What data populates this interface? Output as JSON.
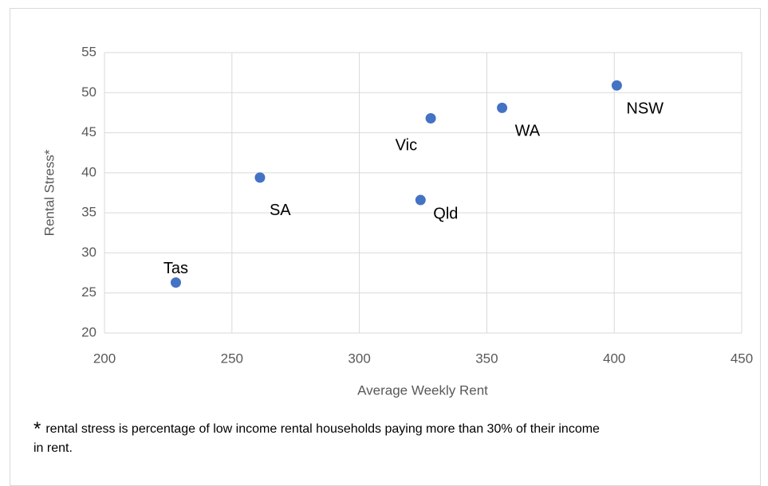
{
  "chart_data": {
    "type": "scatter",
    "xlabel": "Average Weekly Rent",
    "ylabel": "Rental Stress*",
    "x": [
      228,
      261,
      324,
      328,
      356,
      401
    ],
    "values": [
      26.3,
      39.4,
      36.6,
      46.8,
      48.1,
      50.9
    ],
    "labels": [
      "Tas",
      "SA",
      "Qld",
      "Vic",
      "WA",
      "NSW"
    ],
    "color": "#4472c4",
    "xlim": [
      200,
      450
    ],
    "xticks": [
      200,
      250,
      300,
      350,
      400,
      450
    ],
    "ylim": [
      20,
      55
    ],
    "yticks": [
      20,
      25,
      30,
      35,
      40,
      45,
      50,
      55
    ],
    "grid": true,
    "footnote_marker": "*",
    "footnote": "rental stress is percentage of low income rental households paying more than 30% of their income in rent."
  }
}
